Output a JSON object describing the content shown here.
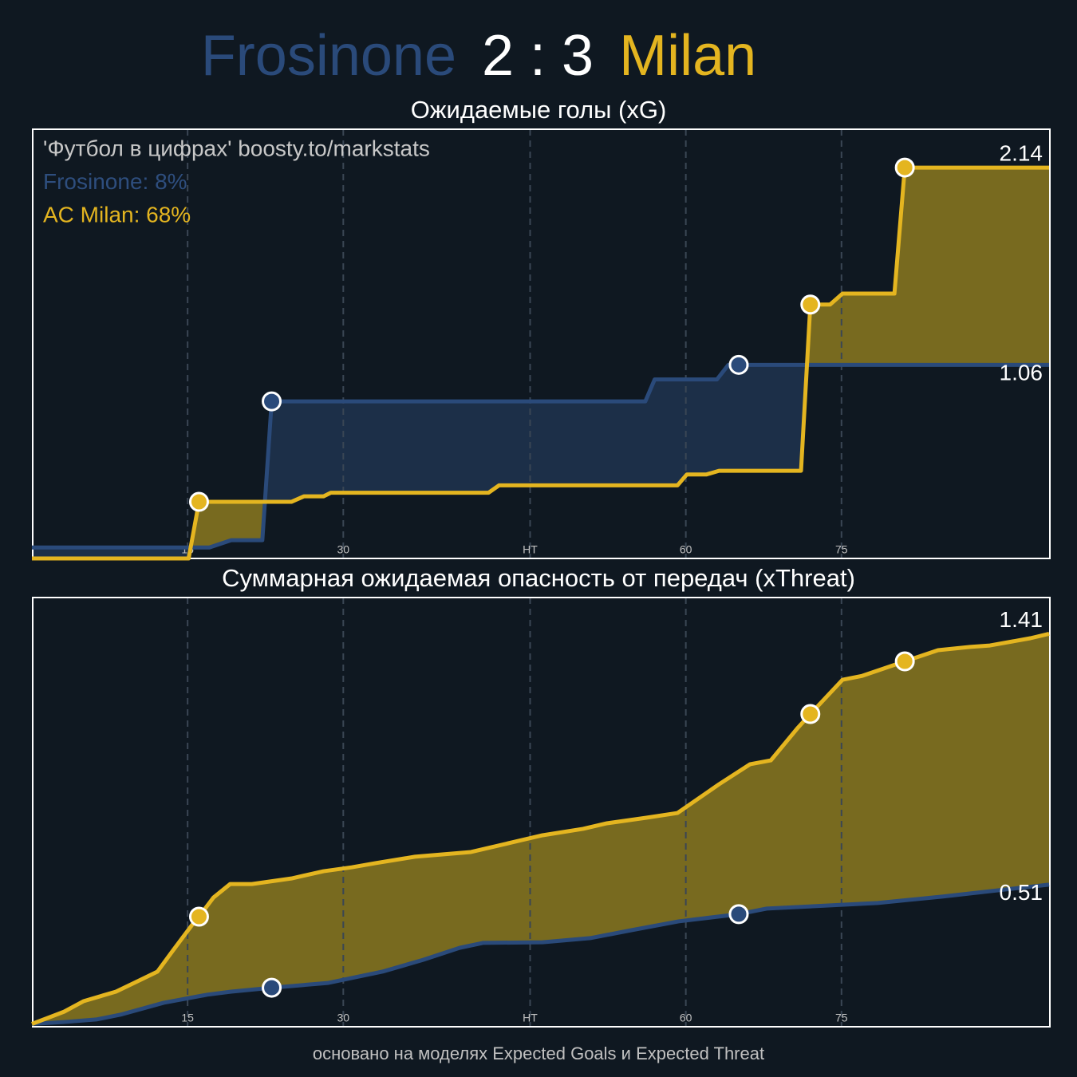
{
  "header": {
    "home": "Frosinone",
    "score": "2 : 3",
    "away": "Milan"
  },
  "chart_data": [
    {
      "type": "line",
      "title": "Ожидаемые голы (xG)",
      "annotations": [
        {
          "text": "'Футбол в цифрах' boosty.to/markstats",
          "color": "#c8c8c8"
        },
        {
          "text": "Frosinone: 8%",
          "color": "#2e4e7e"
        },
        {
          "text": "AC Milan: 68%",
          "color": "#e4b520"
        }
      ],
      "xlim": [
        0,
        98
      ],
      "xticks": [
        15,
        30,
        {
          "value": 48,
          "label": "HT"
        },
        {
          "value": 63,
          "label": "60"
        },
        {
          "value": 78,
          "label": "75"
        }
      ],
      "ylim": [
        0,
        2.35
      ],
      "grid": true,
      "series": [
        {
          "color": "#2a4a7a",
          "fill": "#1c2f48",
          "x": [
            0,
            17.1,
            19.2,
            22.2,
            23.1,
            59.1,
            60,
            66,
            67.1,
            68.1,
            98
          ],
          "values": [
            0.06,
            0.06,
            0.1,
            0.1,
            0.86,
            0.86,
            0.98,
            0.98,
            1.06,
            1.06,
            1.06
          ],
          "goals": [
            23.1,
            68.1
          ]
        },
        {
          "color": "#e4b520",
          "fill": "#786a1f",
          "x": [
            0,
            15.1,
            16.1,
            25,
            26.2,
            28.1,
            28.8,
            44,
            45,
            62.2,
            63.1,
            65,
            66.2,
            74.1,
            75,
            76.9,
            78.1,
            83.1,
            84.1,
            98
          ],
          "values": [
            0,
            0,
            0.31,
            0.31,
            0.34,
            0.34,
            0.36,
            0.36,
            0.4,
            0.4,
            0.46,
            0.46,
            0.48,
            0.48,
            1.39,
            1.39,
            1.45,
            1.45,
            2.14,
            2.14
          ],
          "goals": [
            16.1,
            75,
            84.1
          ]
        }
      ]
    },
    {
      "type": "line",
      "title": "Суммарная ожидаемая опасность от передач (xThreat)",
      "xlim": [
        0,
        98
      ],
      "xticks": [
        15,
        30,
        {
          "value": 48,
          "label": "HT"
        },
        {
          "value": 63,
          "label": "60"
        },
        {
          "value": 78,
          "label": "75"
        }
      ],
      "ylim": [
        0,
        1.54
      ],
      "grid": true,
      "series": [
        {
          "color": "#2a4a7a",
          "fill": "#1c2f48",
          "x": [
            0,
            3.1,
            6.2,
            8.5,
            12.7,
            16.9,
            19.2,
            23.1,
            28.5,
            33.8,
            37.7,
            41.2,
            43.5,
            49.2,
            53.8,
            57.7,
            62.3,
            68.1,
            70.8,
            81.5,
            87.7,
            98
          ],
          "values": [
            0.01,
            0.017,
            0.026,
            0.043,
            0.086,
            0.115,
            0.126,
            0.14,
            0.157,
            0.198,
            0.24,
            0.283,
            0.301,
            0.303,
            0.318,
            0.346,
            0.378,
            0.404,
            0.424,
            0.444,
            0.467,
            0.51
          ],
          "goals": [
            23.1,
            68.1
          ]
        },
        {
          "color": "#e4b520",
          "fill": "#786a1f",
          "x": [
            0,
            3.1,
            5,
            8.1,
            10,
            12.1,
            13.5,
            15.4,
            16.1,
            17.5,
            19.1,
            21.2,
            25,
            28.1,
            30.8,
            33.1,
            36.9,
            42.3,
            46.2,
            49.2,
            53.1,
            55.4,
            59.2,
            62.2,
            66.2,
            69.2,
            71.2,
            73.8,
            75,
            78.1,
            80,
            84.1,
            87.3,
            90.4,
            92.3,
            96.2,
            98
          ],
          "values": [
            0.01,
            0.054,
            0.092,
            0.126,
            0.16,
            0.198,
            0.269,
            0.364,
            0.395,
            0.464,
            0.512,
            0.512,
            0.532,
            0.558,
            0.572,
            0.587,
            0.61,
            0.627,
            0.661,
            0.687,
            0.71,
            0.73,
            0.75,
            0.767,
            0.87,
            0.942,
            0.956,
            1.073,
            1.122,
            1.245,
            1.259,
            1.311,
            1.351,
            1.363,
            1.368,
            1.394,
            1.41
          ],
          "goals": [
            16.1,
            75,
            84.1
          ]
        }
      ]
    }
  ],
  "footer": "основано на моделях Expected Goals и Expected Threat"
}
